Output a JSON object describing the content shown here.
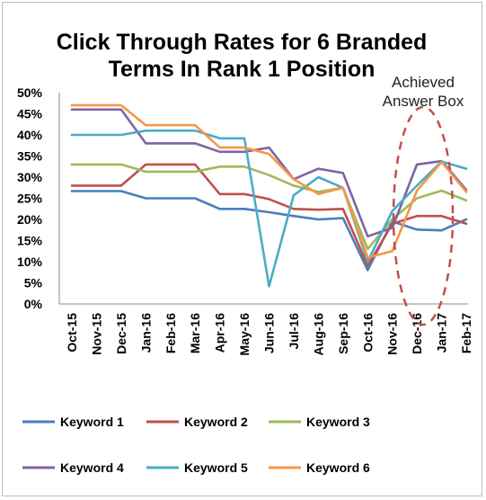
{
  "chart_data": {
    "type": "line",
    "title_lines": [
      "Click Through Rates for 6 Branded",
      "Terms In Rank 1 Position"
    ],
    "xlabel": "",
    "ylabel": "",
    "categories": [
      "Oct-15",
      "Nov-15",
      "Dec-15",
      "Jan-16",
      "Feb-16",
      "Mar-16",
      "Apr-16",
      "May-16",
      "Jun-16",
      "Jul-16",
      "Aug-16",
      "Sep-16",
      "Oct-16",
      "Nov-16",
      "Dec-16",
      "Jan-17",
      "Feb-17"
    ],
    "ylim": [
      0,
      50
    ],
    "yticks": [
      "0%",
      "5%",
      "10%",
      "15%",
      "20%",
      "25%",
      "30%",
      "35%",
      "40%",
      "45%",
      "50%"
    ],
    "grid": false,
    "legend_position": "bottom",
    "series": [
      {
        "name": "Keyword 1",
        "color": "#4a7ebb",
        "values": [
          26.7,
          26.7,
          26.7,
          25.0,
          25.0,
          25.0,
          22.5,
          22.5,
          21.7,
          20.8,
          20.0,
          20.3,
          8.0,
          19.5,
          17.6,
          17.4,
          20.0
        ]
      },
      {
        "name": "Keyword 2",
        "color": "#c0504d",
        "values": [
          28.0,
          28.0,
          28.0,
          33.0,
          33.0,
          33.0,
          26.0,
          26.0,
          24.8,
          22.5,
          22.3,
          22.5,
          9.0,
          19.0,
          20.8,
          20.8,
          19.0
        ]
      },
      {
        "name": "Keyword 3",
        "color": "#9bbb59",
        "values": [
          33.0,
          33.0,
          33.0,
          31.3,
          31.3,
          31.3,
          32.5,
          32.5,
          30.5,
          28.0,
          26.5,
          27.5,
          13.0,
          20.0,
          25.0,
          26.8,
          24.5
        ]
      },
      {
        "name": "Keyword 4",
        "color": "#8064a2",
        "values": [
          46.0,
          46.0,
          46.0,
          38.0,
          38.0,
          38.0,
          36.0,
          36.0,
          37.0,
          29.5,
          32.0,
          31.0,
          16.0,
          18.0,
          33.0,
          33.8,
          27.0
        ]
      },
      {
        "name": "Keyword 5",
        "color": "#4bacc6",
        "values": [
          40.0,
          40.0,
          40.0,
          41.0,
          41.0,
          41.0,
          39.2,
          39.2,
          4.2,
          25.7,
          30.0,
          27.5,
          10.0,
          22.0,
          28.0,
          33.7,
          32.0
        ]
      },
      {
        "name": "Keyword 6",
        "color": "#f79646",
        "values": [
          47.0,
          47.0,
          47.0,
          42.3,
          42.3,
          42.3,
          37.0,
          37.0,
          35.5,
          29.5,
          26.0,
          27.5,
          11.0,
          12.5,
          26.8,
          33.6,
          26.5
        ]
      }
    ],
    "annotation": {
      "lines": [
        "Achieved",
        "Answer Box"
      ],
      "color": "#c0504d",
      "highlight_categories": [
        "Dec-16",
        "Jan-17"
      ]
    }
  }
}
